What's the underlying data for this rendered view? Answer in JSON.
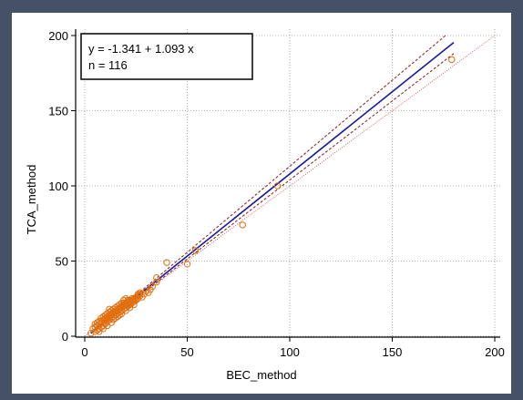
{
  "chart_data": {
    "type": "scatter",
    "xlabel": "BEC_method",
    "ylabel": "TCA_method",
    "xlim": [
      0,
      200
    ],
    "ylim": [
      0,
      200
    ],
    "x_ticks": [
      "0",
      "50",
      "100",
      "150",
      "200"
    ],
    "y_ticks": [
      "0",
      "50",
      "100",
      "150",
      "200"
    ],
    "grid": true,
    "annotation": {
      "line1": "y = -1.341  +  1.093  x",
      "line2": "n = 116"
    },
    "regression": {
      "intercept": -1.341,
      "slope": 1.093,
      "x_range": [
        3,
        180
      ]
    },
    "confidence_band": {
      "upper_end": [
        176,
        200
      ],
      "lower_end": [
        180,
        188
      ],
      "start": [
        3,
        2
      ]
    },
    "identity_line": {
      "points": [
        [
          0,
          0
        ],
        [
          200,
          200
        ]
      ]
    },
    "points": [
      [
        3,
        2
      ],
      [
        4,
        5
      ],
      [
        5,
        3
      ],
      [
        5,
        6
      ],
      [
        6,
        4
      ],
      [
        6,
        7
      ],
      [
        7,
        5
      ],
      [
        7,
        8
      ],
      [
        7,
        3
      ],
      [
        8,
        6
      ],
      [
        8,
        9
      ],
      [
        8,
        10
      ],
      [
        9,
        7
      ],
      [
        9,
        11
      ],
      [
        9,
        5
      ],
      [
        10,
        8
      ],
      [
        10,
        12
      ],
      [
        10,
        9
      ],
      [
        11,
        10
      ],
      [
        11,
        13
      ],
      [
        11,
        7
      ],
      [
        12,
        11
      ],
      [
        12,
        14
      ],
      [
        12,
        18
      ],
      [
        13,
        12
      ],
      [
        13,
        15
      ],
      [
        13,
        9
      ],
      [
        14,
        13
      ],
      [
        14,
        16
      ],
      [
        14,
        11
      ],
      [
        15,
        14
      ],
      [
        15,
        17
      ],
      [
        15,
        12
      ],
      [
        16,
        15
      ],
      [
        16,
        18
      ],
      [
        16,
        13
      ],
      [
        17,
        16
      ],
      [
        17,
        19
      ],
      [
        17,
        14
      ],
      [
        18,
        17
      ],
      [
        18,
        20
      ],
      [
        18,
        15
      ],
      [
        19,
        18
      ],
      [
        19,
        21
      ],
      [
        19,
        22
      ],
      [
        20,
        19
      ],
      [
        20,
        22
      ],
      [
        20,
        17
      ],
      [
        21,
        20
      ],
      [
        21,
        23
      ],
      [
        21,
        24
      ],
      [
        22,
        21
      ],
      [
        22,
        24
      ],
      [
        22,
        19
      ],
      [
        23,
        22
      ],
      [
        23,
        25
      ],
      [
        24,
        23
      ],
      [
        24,
        21
      ],
      [
        25,
        24
      ],
      [
        25,
        26
      ],
      [
        26,
        25
      ],
      [
        26,
        28
      ],
      [
        27,
        27
      ],
      [
        27,
        29
      ],
      [
        28,
        26
      ],
      [
        29,
        28
      ],
      [
        30,
        30
      ],
      [
        31,
        29
      ],
      [
        32,
        31
      ],
      [
        33,
        33
      ],
      [
        35,
        36
      ],
      [
        35,
        39
      ],
      [
        40,
        49
      ],
      [
        50,
        48
      ],
      [
        54,
        57
      ],
      [
        77,
        74
      ],
      [
        94,
        100
      ],
      [
        179,
        184
      ],
      [
        5,
        8
      ],
      [
        6,
        9
      ],
      [
        7,
        10
      ],
      [
        8,
        12
      ],
      [
        9,
        13
      ],
      [
        10,
        14
      ],
      [
        11,
        15
      ],
      [
        12,
        16
      ],
      [
        13,
        17
      ],
      [
        14,
        18
      ],
      [
        15,
        19
      ],
      [
        16,
        20
      ],
      [
        17,
        21
      ],
      [
        18,
        22
      ],
      [
        19,
        24
      ],
      [
        20,
        25
      ],
      [
        21,
        22
      ],
      [
        22,
        23
      ],
      [
        23,
        24
      ],
      [
        24,
        25
      ],
      [
        10,
        11
      ],
      [
        11,
        12
      ],
      [
        12,
        13
      ],
      [
        13,
        14
      ],
      [
        14,
        15
      ],
      [
        15,
        16
      ],
      [
        16,
        17
      ],
      [
        17,
        18
      ],
      [
        18,
        19
      ],
      [
        19,
        20
      ],
      [
        20,
        21
      ],
      [
        21,
        21
      ],
      [
        22,
        22
      ],
      [
        23,
        23
      ],
      [
        24,
        24
      ],
      [
        25,
        25
      ],
      [
        26,
        27
      ],
      [
        27,
        28
      ]
    ]
  }
}
